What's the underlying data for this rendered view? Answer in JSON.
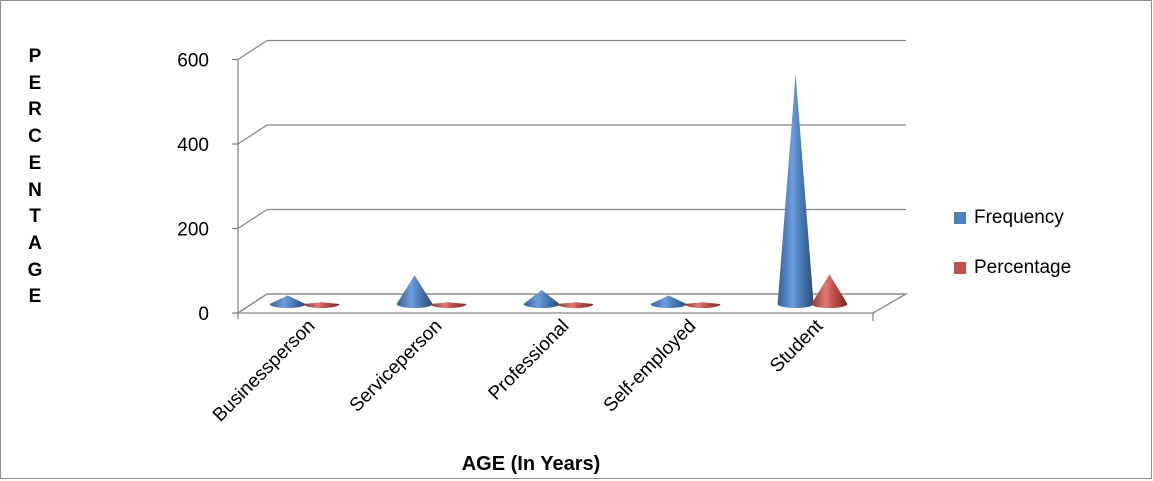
{
  "chart_data": {
    "type": "bar",
    "xlabel": "AGE (In Years)",
    "ylabel": "PERCENTAGE",
    "categories": [
      "Businessperson",
      "Serviceperson",
      "Professional",
      "Self-employed",
      "Student"
    ],
    "series": [
      {
        "name": "Frequency",
        "values": [
          20,
          68,
          33,
          20,
          545
        ],
        "color": "#4f81bd"
      },
      {
        "name": "Percentage",
        "values": [
          4,
          4,
          4,
          4,
          70
        ],
        "color": "#c0504d"
      }
    ],
    "ylim": [
      0,
      600
    ],
    "yticks": [
      "0",
      "200",
      "400",
      "600"
    ],
    "grid": true,
    "legend": "right",
    "mark_shape": "cone-3d"
  }
}
